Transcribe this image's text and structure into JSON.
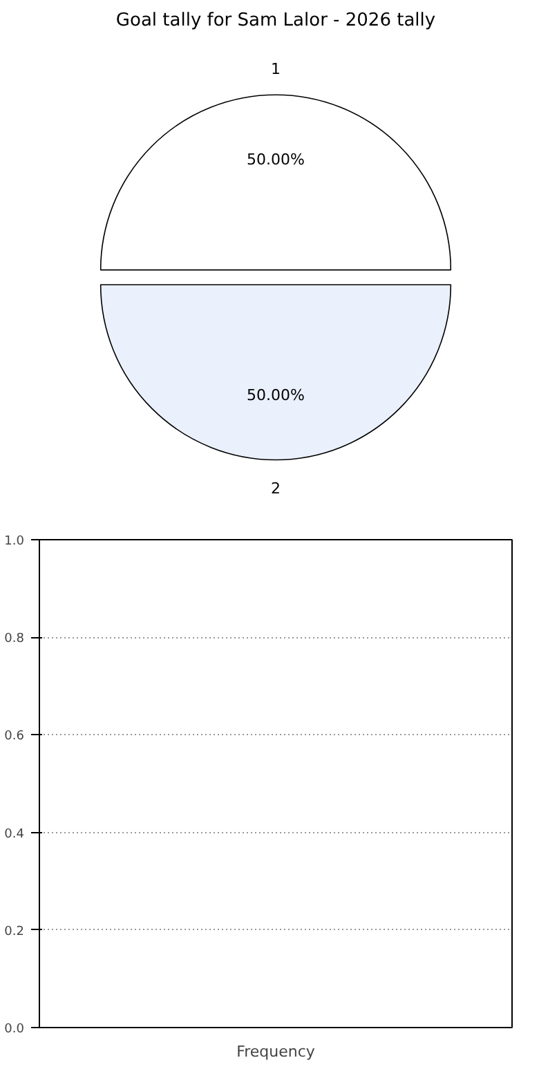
{
  "chart_data": [
    {
      "type": "pie",
      "title": "Goal tally for Sam Lalor - 2026 tally",
      "categories": [
        "1",
        "2"
      ],
      "values": [
        50,
        50
      ],
      "colors": [
        "#ffffff",
        "#eaf0fc"
      ],
      "value_labels": [
        "50.00%",
        "50.00%"
      ]
    },
    {
      "type": "bar",
      "categories": [
        "Frequency"
      ],
      "values": [
        0
      ],
      "ylim": [
        0,
        1
      ],
      "yticks": [
        {
          "value": 0,
          "label": "0.0"
        },
        0.2,
        0.4,
        0.6,
        0.8,
        {
          "value": 1,
          "label": "1.0"
        }
      ],
      "grid": "y"
    }
  ]
}
